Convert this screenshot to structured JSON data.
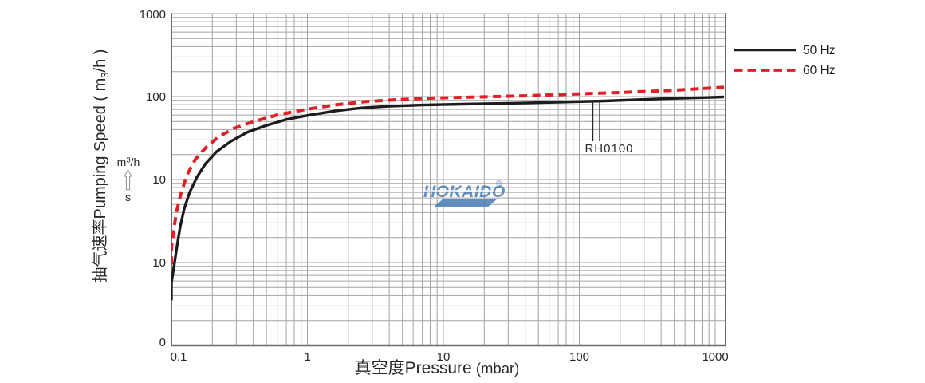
{
  "legend": {
    "items": [
      {
        "label": "50 Hz",
        "color": "#1c1c1c",
        "style": "solid"
      },
      {
        "label": "60 Hz",
        "color": "#e01f26",
        "style": "dashed"
      }
    ]
  },
  "watermark": {
    "text": "HOKAIDO",
    "registered": "®",
    "color": "#4c80b6"
  },
  "x_axis": {
    "title_cjk": "真空度",
    "title_en": "Pressure",
    "title_unit": " (mbar)",
    "tick_labels": [
      "0.1",
      "1",
      "10",
      "100",
      "1000"
    ]
  },
  "y_axis": {
    "title_cjk": "抽气速率",
    "title_en": "Pumping Speed",
    "unit_pre": " ( m",
    "unit_sub": "3",
    "unit_post": "/h )",
    "tick_labels": [
      "1000",
      "100",
      "10",
      "10",
      "0"
    ],
    "side_unit_num_pre": "m",
    "side_unit_num_sup": "3",
    "side_unit_num_post": "/h",
    "side_unit_den": "s"
  },
  "chart_data": {
    "type": "line",
    "title": "",
    "xlabel": "真空度Pressure (mbar)",
    "ylabel": "抽气速率Pumping Speed ( m3/h )",
    "x_scale": "log",
    "y_scale": "log",
    "x_range": [
      0.1,
      1160
    ],
    "x_ticks": [
      0.1,
      1,
      10,
      100,
      1000
    ],
    "y_tick_labels": [
      "1000",
      "100",
      "10",
      "10",
      "0"
    ],
    "grid": true,
    "legend_position": "top-right",
    "series": [
      {
        "name": "50 Hz",
        "color": "#1c1c1c",
        "style": "solid",
        "points": [
          [
            0.1,
            0.35
          ],
          [
            0.1,
            0.57
          ],
          [
            0.105,
            0.95
          ],
          [
            0.11,
            1.6
          ],
          [
            0.116,
            2.7
          ],
          [
            0.124,
            4.4
          ],
          [
            0.136,
            7.0
          ],
          [
            0.154,
            10.7
          ],
          [
            0.178,
            15.5
          ],
          [
            0.215,
            21.7
          ],
          [
            0.275,
            29
          ],
          [
            0.36,
            37
          ],
          [
            0.48,
            44
          ],
          [
            0.7,
            53
          ],
          [
            1.05,
            60
          ],
          [
            1.6,
            67
          ],
          [
            2.5,
            73
          ],
          [
            4.0,
            76.5
          ],
          [
            7.0,
            79
          ],
          [
            13.7,
            81
          ],
          [
            31,
            83
          ],
          [
            69,
            85.5
          ],
          [
            154,
            88.5
          ],
          [
            393,
            94
          ],
          [
            1160,
            99
          ]
        ]
      },
      {
        "name": "60 Hz",
        "color": "#e01f26",
        "style": "dashed",
        "points": [
          [
            0.1,
            0.95
          ],
          [
            0.1,
            1.5
          ],
          [
            0.104,
            2.5
          ],
          [
            0.109,
            4.1
          ],
          [
            0.118,
            7.0
          ],
          [
            0.13,
            11.3
          ],
          [
            0.15,
            17.5
          ],
          [
            0.178,
            24
          ],
          [
            0.22,
            32.5
          ],
          [
            0.29,
            41.5
          ],
          [
            0.41,
            50.5
          ],
          [
            0.6,
            60
          ],
          [
            1.0,
            70.5
          ],
          [
            1.6,
            79.5
          ],
          [
            2.7,
            87
          ],
          [
            4.6,
            92
          ],
          [
            8.5,
            96
          ],
          [
            18,
            99
          ],
          [
            40,
            102
          ],
          [
            90,
            107
          ],
          [
            200,
            112
          ],
          [
            450,
            118
          ],
          [
            1160,
            129.5
          ]
        ]
      }
    ],
    "annotation": {
      "label": "RH0100",
      "leader_pressures": [
        126,
        141
      ]
    }
  }
}
